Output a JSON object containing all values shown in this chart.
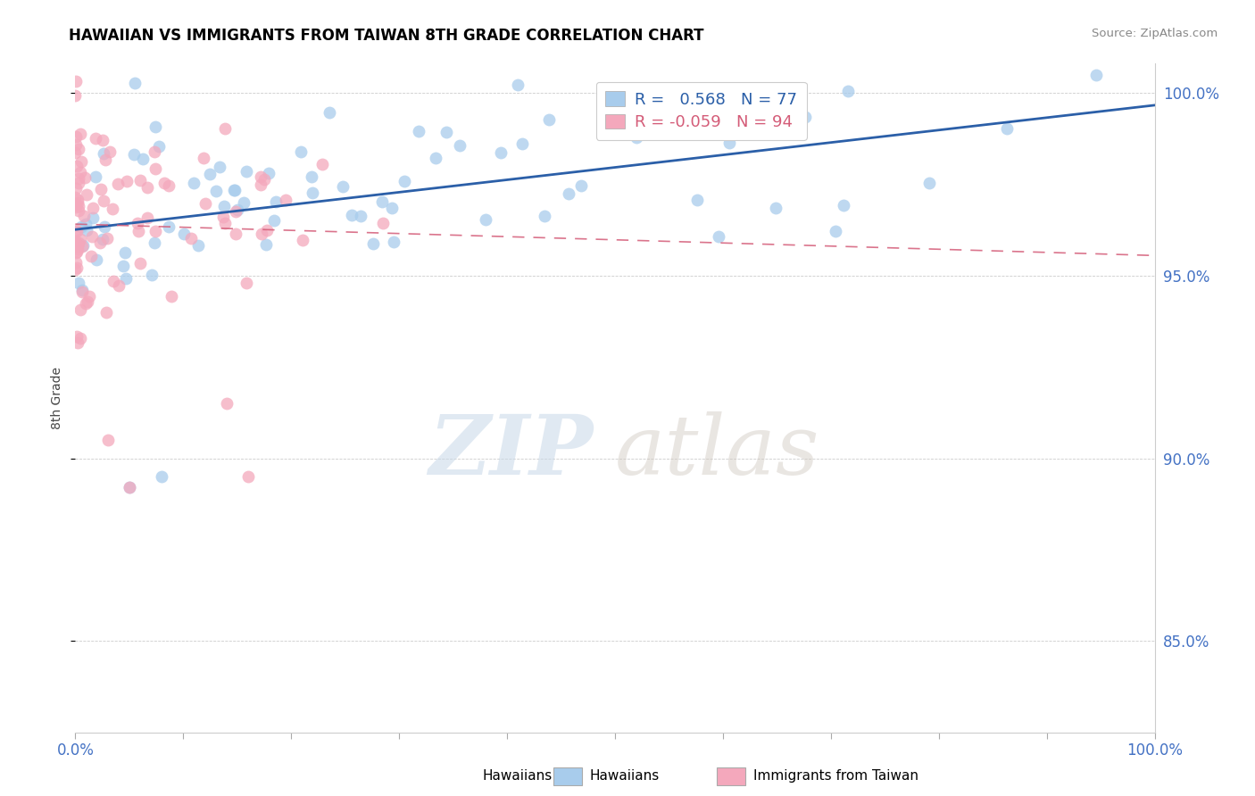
{
  "title": "HAWAIIAN VS IMMIGRANTS FROM TAIWAN 8TH GRADE CORRELATION CHART",
  "source": "Source: ZipAtlas.com",
  "ylabel": "8th Grade",
  "legend_blue_label": "Hawaiians",
  "legend_pink_label": "Immigrants from Taiwan",
  "R_blue": 0.568,
  "N_blue": 77,
  "R_pink": -0.059,
  "N_pink": 94,
  "blue_color": "#A8CCEC",
  "pink_color": "#F4A8BC",
  "trend_blue_color": "#2B5FA8",
  "trend_pink_color": "#D45C78",
  "watermark_zip": "ZIP",
  "watermark_atlas": "atlas",
  "ylim_low": 0.825,
  "ylim_high": 1.008,
  "yticks": [
    0.85,
    0.9,
    0.95,
    1.0
  ],
  "ytick_labels": [
    "85.0%",
    "90.0%",
    "95.0%",
    "100.0%"
  ],
  "dot_size": 100
}
